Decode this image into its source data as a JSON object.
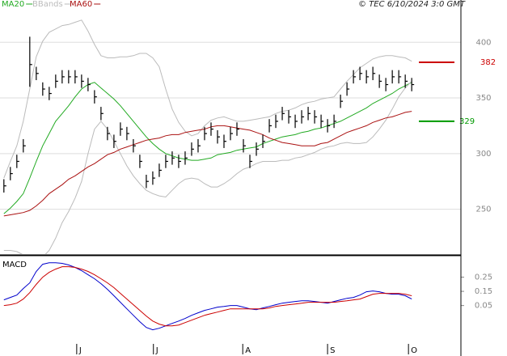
{
  "chart_data": [
    {
      "type": "ohlc",
      "legend": "top-left",
      "credit": "© TEC 6/10/2024 3:0 GMT",
      "x": [
        0,
        1,
        2,
        3,
        4,
        5,
        6,
        7,
        8,
        9,
        10,
        11,
        12,
        13,
        14,
        15,
        16,
        17,
        18,
        19,
        20,
        21,
        22,
        23,
        24,
        25,
        26,
        27,
        28,
        29,
        30,
        31,
        32,
        33,
        34,
        35,
        36,
        37,
        38,
        39,
        40,
        41,
        42,
        43,
        44,
        45,
        46,
        47,
        48,
        49,
        50,
        51,
        52,
        53,
        54,
        55,
        56,
        57,
        58,
        59,
        60,
        61,
        62,
        63
      ],
      "xlim": [
        -0.6,
        70.6
      ],
      "ylim": [
        209,
        438
      ],
      "yticks": [
        250,
        300,
        350,
        400
      ],
      "grid": true,
      "bar_color": "#000000",
      "close": [
        271,
        282,
        293,
        307,
        380,
        372,
        358,
        354,
        365,
        369,
        369,
        369,
        365,
        362,
        351,
        336,
        318,
        311,
        322,
        318,
        307,
        293,
        275,
        278,
        285,
        293,
        296,
        293,
        296,
        304,
        307,
        318,
        322,
        315,
        311,
        318,
        322,
        307,
        293,
        304,
        311,
        325,
        329,
        336,
        333,
        329,
        333,
        336,
        333,
        329,
        325,
        329,
        347,
        358,
        369,
        372,
        369,
        372,
        365,
        362,
        369,
        369,
        365,
        362
      ],
      "high": [
        277,
        288,
        299,
        313,
        405,
        378,
        364,
        360,
        371,
        375,
        375,
        375,
        371,
        368,
        357,
        342,
        324,
        317,
        328,
        324,
        313,
        299,
        281,
        284,
        291,
        299,
        302,
        299,
        302,
        310,
        313,
        324,
        328,
        321,
        317,
        324,
        328,
        313,
        299,
        310,
        317,
        331,
        335,
        342,
        339,
        335,
        339,
        342,
        339,
        335,
        331,
        335,
        353,
        364,
        375,
        378,
        375,
        378,
        371,
        368,
        375,
        375,
        371,
        368
      ],
      "low": [
        265,
        276,
        287,
        301,
        360,
        366,
        352,
        348,
        359,
        363,
        363,
        363,
        359,
        356,
        345,
        330,
        312,
        305,
        316,
        312,
        301,
        287,
        269,
        272,
        279,
        287,
        290,
        287,
        290,
        298,
        301,
        312,
        316,
        309,
        305,
        312,
        316,
        301,
        287,
        298,
        305,
        319,
        323,
        330,
        327,
        323,
        327,
        330,
        327,
        323,
        319,
        323,
        341,
        352,
        363,
        366,
        363,
        366,
        359,
        356,
        363,
        363,
        359,
        356
      ],
      "series": [
        {
          "name": "MA20",
          "color": "#22aa22",
          "values": [
            246,
            251,
            257,
            264,
            278,
            293,
            307,
            318,
            329,
            336,
            343,
            351,
            358,
            362,
            364,
            359,
            354,
            349,
            343,
            336,
            329,
            322,
            315,
            309,
            304,
            300,
            298,
            296,
            295,
            294,
            294,
            295,
            296,
            299,
            300,
            301,
            303,
            304,
            305,
            306,
            309,
            311,
            313,
            315,
            316,
            317,
            319,
            320,
            322,
            323,
            325,
            327,
            329,
            332,
            335,
            338,
            341,
            345,
            348,
            351,
            354,
            358,
            361,
            364
          ]
        },
        {
          "name": "BBands",
          "color": "#bbbbbb",
          "values": [
            278,
            293,
            307,
            329,
            358,
            387,
            401,
            409,
            412,
            415,
            416,
            418,
            420,
            410,
            398,
            388,
            386,
            386,
            387,
            387,
            388,
            390,
            390,
            386,
            378,
            358,
            340,
            328,
            320,
            316,
            318,
            325,
            330,
            332,
            333,
            331,
            329,
            329,
            330,
            331,
            332,
            333,
            336,
            338,
            339,
            341,
            344,
            346,
            347,
            349,
            350,
            351,
            358,
            365,
            371,
            377,
            381,
            385,
            387,
            388,
            388,
            387,
            386,
            383
          ],
          "lower": [
            213,
            213,
            212,
            209,
            207,
            206,
            207,
            213,
            224,
            238,
            248,
            260,
            275,
            300,
            322,
            329,
            322,
            311,
            300,
            289,
            280,
            273,
            267,
            264,
            262,
            261,
            267,
            273,
            277,
            278,
            277,
            273,
            270,
            270,
            273,
            277,
            282,
            286,
            288,
            291,
            293,
            293,
            293,
            294,
            294,
            296,
            297,
            299,
            301,
            304,
            306,
            307,
            309,
            310,
            309,
            309,
            310,
            315,
            322,
            330,
            340,
            351,
            359,
            365
          ]
        },
        {
          "name": "MA60",
          "color": "#aa1111",
          "values": [
            244,
            245,
            246,
            247,
            249,
            253,
            258,
            264,
            268,
            272,
            277,
            280,
            284,
            288,
            291,
            295,
            299,
            301,
            304,
            306,
            308,
            310,
            312,
            313,
            314,
            316,
            317,
            317,
            319,
            320,
            321,
            322,
            324,
            325,
            325,
            324,
            323,
            322,
            321,
            319,
            317,
            314,
            312,
            310,
            309,
            308,
            307,
            307,
            307,
            309,
            310,
            313,
            316,
            319,
            321,
            323,
            325,
            328,
            330,
            332,
            333,
            335,
            337,
            338
          ]
        }
      ],
      "levels": [
        {
          "value": 382,
          "color": "#cc0000"
        },
        {
          "value": 329,
          "color": "#009900"
        }
      ]
    },
    {
      "type": "line",
      "title": "MACD",
      "x": [
        0,
        1,
        2,
        3,
        4,
        5,
        6,
        7,
        8,
        9,
        10,
        11,
        12,
        13,
        14,
        15,
        16,
        17,
        18,
        19,
        20,
        21,
        22,
        23,
        24,
        25,
        26,
        27,
        28,
        29,
        30,
        31,
        32,
        33,
        34,
        35,
        36,
        37,
        38,
        39,
        40,
        41,
        42,
        43,
        44,
        45,
        46,
        47,
        48,
        49,
        50,
        51,
        52,
        53,
        54,
        55,
        56,
        57,
        58,
        59,
        60,
        61,
        62,
        63
      ],
      "xlim": [
        -0.6,
        70.6
      ],
      "xticks": [
        {
          "value": 11.25,
          "label": "J"
        },
        {
          "value": 23.1,
          "label": "J"
        },
        {
          "value": 36.9,
          "label": "A"
        },
        {
          "value": 50,
          "label": "S"
        },
        {
          "value": 62.5,
          "label": "O"
        }
      ],
      "ylim": [
        -0.22,
        0.39
      ],
      "yticks": [
        0.25,
        0.15,
        0.05
      ],
      "series": [
        {
          "color": "#0000cc",
          "values": [
            0.09,
            0.107,
            0.124,
            0.17,
            0.21,
            0.29,
            0.341,
            0.351,
            0.351,
            0.347,
            0.336,
            0.319,
            0.296,
            0.267,
            0.239,
            0.204,
            0.164,
            0.119,
            0.073,
            0.027,
            -0.019,
            -0.064,
            -0.104,
            -0.121,
            -0.11,
            -0.093,
            -0.076,
            -0.059,
            -0.041,
            -0.019,
            -0.001,
            0.016,
            0.027,
            0.039,
            0.044,
            0.05,
            0.05,
            0.039,
            0.027,
            0.021,
            0.033,
            0.044,
            0.056,
            0.067,
            0.073,
            0.079,
            0.084,
            0.084,
            0.079,
            0.073,
            0.067,
            0.079,
            0.09,
            0.101,
            0.107,
            0.124,
            0.147,
            0.153,
            0.147,
            0.136,
            0.13,
            0.13,
            0.119,
            0.096
          ]
        },
        {
          "color": "#cc0000",
          "values": [
            0.05,
            0.056,
            0.067,
            0.096,
            0.141,
            0.199,
            0.25,
            0.284,
            0.307,
            0.324,
            0.324,
            0.319,
            0.307,
            0.29,
            0.267,
            0.239,
            0.21,
            0.176,
            0.136,
            0.096,
            0.056,
            0.016,
            -0.024,
            -0.059,
            -0.081,
            -0.093,
            -0.093,
            -0.087,
            -0.07,
            -0.053,
            -0.036,
            -0.019,
            -0.007,
            0.004,
            0.016,
            0.027,
            0.027,
            0.027,
            0.027,
            0.027,
            0.027,
            0.033,
            0.044,
            0.05,
            0.056,
            0.061,
            0.067,
            0.073,
            0.073,
            0.073,
            0.073,
            0.073,
            0.079,
            0.084,
            0.09,
            0.096,
            0.113,
            0.13,
            0.136,
            0.136,
            0.136,
            0.136,
            0.13,
            0.119
          ]
        }
      ]
    }
  ]
}
